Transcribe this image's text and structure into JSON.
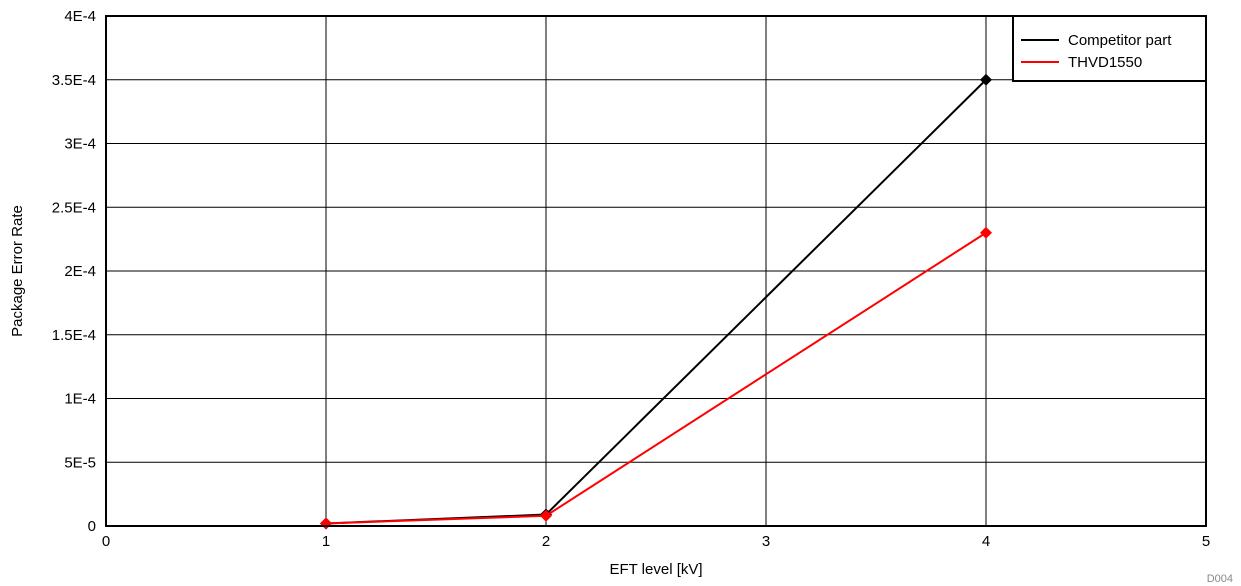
{
  "chart_data": {
    "type": "line",
    "xlabel": "EFT level  [kV]",
    "ylabel": "Package Error Rate",
    "xlim": [
      0,
      5
    ],
    "ylim": [
      0,
      0.0004
    ],
    "x_ticks": [
      "0",
      "1",
      "2",
      "3",
      "4",
      "5"
    ],
    "y_ticks": [
      "0",
      "5E-5",
      "1E-4",
      "1.5E-4",
      "2E-4",
      "2.5E-4",
      "3E-4",
      "3.5E-4",
      "4E-4"
    ],
    "grid": true,
    "legend_position": "top-right",
    "series": [
      {
        "name": "Competitor part",
        "color": "#000000",
        "marker": "diamond",
        "x": [
          1,
          2,
          4
        ],
        "y": [
          2e-06,
          9e-06,
          0.00035
        ]
      },
      {
        "name": "THVD1550",
        "color": "#ff0000",
        "marker": "diamond",
        "x": [
          1,
          2,
          4
        ],
        "y": [
          2e-06,
          8e-06,
          0.00023
        ]
      }
    ],
    "footnote": "D004"
  }
}
